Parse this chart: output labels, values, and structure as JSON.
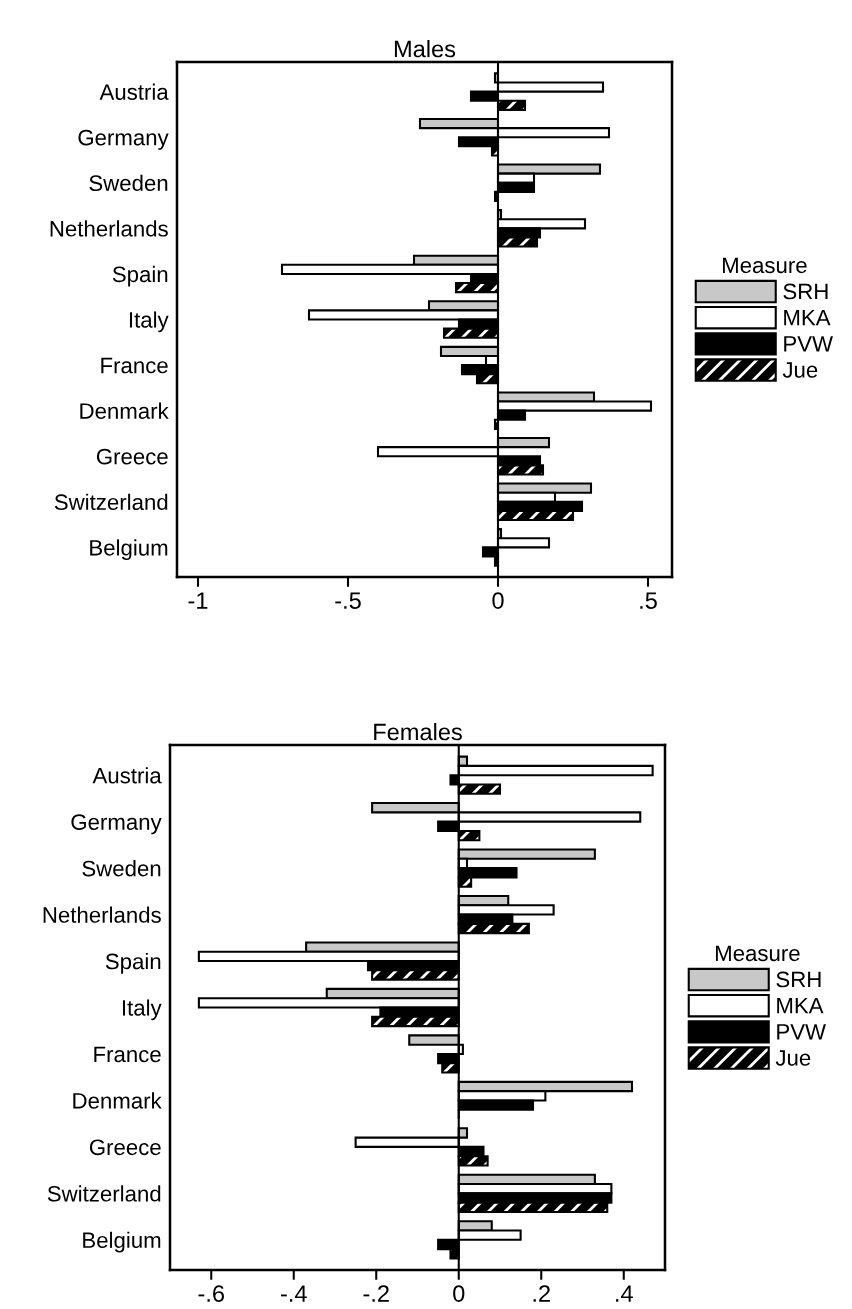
{
  "chart_data": [
    {
      "type": "bar",
      "orientation": "horizontal",
      "title": "Males",
      "legend_title": "Measure",
      "legend": "right",
      "grid": false,
      "categories": [
        "Austria",
        "Germany",
        "Sweden",
        "Netherlands",
        "Spain",
        "Italy",
        "France",
        "Denmark",
        "Greece",
        "Switzerland",
        "Belgium"
      ],
      "xlim": [
        -1.07,
        0.58
      ],
      "xticks": [
        -1,
        {
          "value": -0.5,
          "label": "-.5"
        },
        0,
        {
          "value": 0.5,
          "label": ".5"
        }
      ],
      "ref_lines": [
        {
          "axis": "x",
          "value": 0,
          "color": "#000000"
        }
      ],
      "series": [
        {
          "name": "SRH",
          "color": "#c8c8c8",
          "values": [
            -0.01,
            -0.26,
            0.34,
            0.01,
            -0.28,
            -0.23,
            -0.19,
            0.32,
            0.17,
            0.31,
            0.01
          ]
        },
        {
          "name": "MKA",
          "color": "#ffffff",
          "values": [
            0.35,
            0.37,
            0.12,
            0.29,
            -0.72,
            -0.63,
            -0.04,
            0.51,
            -0.4,
            0.19,
            0.17
          ]
        },
        {
          "name": "PVW",
          "color": "#000000",
          "values": [
            -0.09,
            -0.13,
            0.12,
            0.14,
            -0.09,
            -0.13,
            -0.12,
            0.09,
            0.14,
            0.28,
            -0.05
          ]
        },
        {
          "name": "Jue",
          "color": "#000000",
          "values": [
            0.09,
            -0.02,
            -0.01,
            0.13,
            -0.14,
            -0.18,
            -0.07,
            -0.01,
            0.15,
            0.25,
            -0.01
          ]
        }
      ]
    },
    {
      "type": "bar",
      "orientation": "horizontal",
      "title": "Females",
      "legend_title": "Measure",
      "legend": "right",
      "grid": false,
      "categories": [
        "Austria",
        "Germany",
        "Sweden",
        "Netherlands",
        "Spain",
        "Italy",
        "France",
        "Denmark",
        "Greece",
        "Switzerland",
        "Belgium"
      ],
      "xlim": [
        -0.7,
        0.5
      ],
      "xticks": [
        {
          "value": -0.6,
          "label": "-.6"
        },
        {
          "value": -0.4,
          "label": "-.4"
        },
        {
          "value": -0.2,
          "label": "-.2"
        },
        0,
        {
          "value": 0.2,
          "label": ".2"
        },
        {
          "value": 0.4,
          "label": ".4"
        }
      ],
      "ref_lines": [
        {
          "axis": "x",
          "value": 0,
          "color": "#000000"
        }
      ],
      "series": [
        {
          "name": "SRH",
          "color": "#c8c8c8",
          "values": [
            0.02,
            -0.21,
            0.33,
            0.12,
            -0.37,
            -0.32,
            -0.12,
            0.42,
            0.02,
            0.33,
            0.08
          ]
        },
        {
          "name": "MKA",
          "color": "#ffffff",
          "values": [
            0.47,
            0.44,
            0.02,
            0.23,
            -0.63,
            -0.63,
            0.01,
            0.21,
            -0.25,
            0.37,
            0.15
          ]
        },
        {
          "name": "PVW",
          "color": "#000000",
          "values": [
            -0.02,
            -0.05,
            0.14,
            0.13,
            -0.22,
            -0.19,
            -0.05,
            0.18,
            0.06,
            0.37,
            -0.05
          ]
        },
        {
          "name": "Jue",
          "color": "#000000",
          "values": [
            0.1,
            0.05,
            0.03,
            0.17,
            -0.21,
            -0.21,
            -0.04,
            0.0,
            0.07,
            0.36,
            -0.02
          ]
        }
      ]
    }
  ]
}
